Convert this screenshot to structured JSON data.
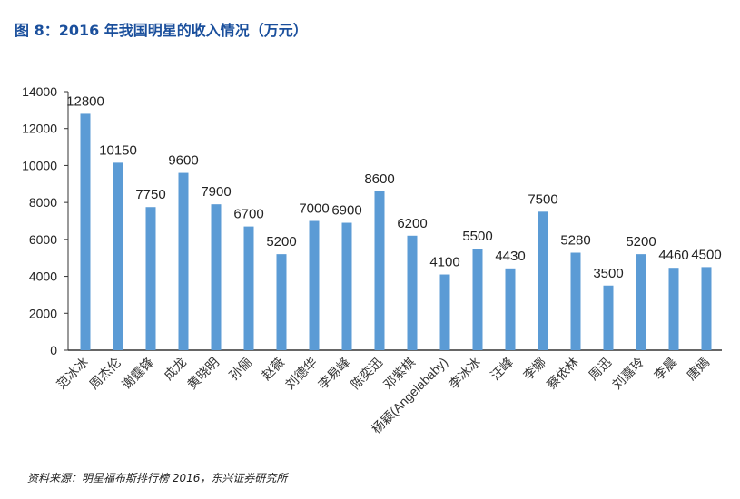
{
  "title": "图 8：2016 年我国明星的收入情况（万元）",
  "source": "资料来源：明星福布斯排行榜 2016，东兴证券研究所",
  "chart_data": {
    "type": "bar",
    "title": "图 8：2016 年我国明星的收入情况（万元）",
    "categories": [
      "范冰冰",
      "周杰伦",
      "谢霆锋",
      "成龙",
      "黄晓明",
      "孙俪",
      "赵薇",
      "刘德华",
      "李易峰",
      "陈奕迅",
      "邓紫棋",
      "杨颖(Angelababy)",
      "李冰冰",
      "汪峰",
      "李娜",
      "蔡依林",
      "周迅",
      "刘嘉玲",
      "李晨",
      "唐嫣"
    ],
    "values": [
      12800,
      10150,
      7750,
      9600,
      7900,
      6700,
      5200,
      7000,
      6900,
      8600,
      6200,
      4100,
      5500,
      4430,
      7500,
      5280,
      3500,
      5200,
      4460,
      4500
    ],
    "ylim": [
      0,
      14000
    ],
    "yticks": [
      0,
      2000,
      4000,
      6000,
      8000,
      10000,
      12000,
      14000
    ],
    "grid": false,
    "bar_color": "#5b9bd5",
    "data_labels": true
  }
}
